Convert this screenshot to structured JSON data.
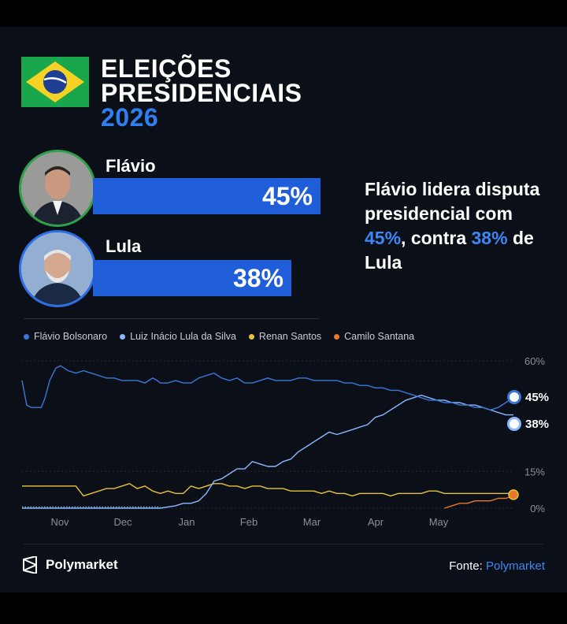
{
  "header": {
    "title_line1": "ELEIÇÕES",
    "title_line2": "PRESIDENCIAIS",
    "year": "2026"
  },
  "candidates": [
    {
      "name": "Flávio",
      "percent_label": "45%",
      "percent": 45
    },
    {
      "name": "Lula",
      "percent_label": "38%",
      "percent": 38
    }
  ],
  "headline": {
    "part1": "Flávio lidera disputa presidencial com ",
    "hl1": "45%",
    "part2": ", contra ",
    "hl2": "38%",
    "part3": " de Lula"
  },
  "colors": {
    "accent": "#2f7ff0",
    "bar": "#1f5ed8",
    "series_flavio": "#3a78d8",
    "series_lula": "#8cb8ff",
    "series_renan": "#e8c23a",
    "series_camilo": "#e8772a"
  },
  "chart_data": {
    "type": "line",
    "x_ticks": [
      "Nov",
      "Dec",
      "Jan",
      "Feb",
      "Mar",
      "Apr",
      "May"
    ],
    "y_ticks": [
      "60%",
      "15%",
      "0%"
    ],
    "ylim": [
      0,
      60
    ],
    "legend_position": "top",
    "series": [
      {
        "name": "Flávio Bolsonaro",
        "color": "#3a78d8",
        "end_label": "45%",
        "points": [
          [
            0,
            52
          ],
          [
            0.3,
            47
          ],
          [
            0.6,
            42
          ],
          [
            1.2,
            41
          ],
          [
            2,
            41
          ],
          [
            2.5,
            41
          ],
          [
            3,
            45
          ],
          [
            3.6,
            52
          ],
          [
            4.4,
            57
          ],
          [
            5,
            58
          ],
          [
            6,
            56
          ],
          [
            7,
            55
          ],
          [
            8,
            56
          ],
          [
            9,
            55
          ],
          [
            10,
            54
          ],
          [
            11,
            53
          ],
          [
            12,
            53
          ],
          [
            13,
            52
          ],
          [
            14,
            52
          ],
          [
            15,
            52
          ],
          [
            16,
            51
          ],
          [
            17,
            53
          ],
          [
            17.6,
            52
          ],
          [
            18,
            51
          ],
          [
            19,
            51
          ],
          [
            20,
            52
          ],
          [
            21,
            51
          ],
          [
            22,
            51
          ],
          [
            23,
            53
          ],
          [
            24,
            54
          ],
          [
            25,
            55
          ],
          [
            26,
            53
          ],
          [
            27,
            52
          ],
          [
            28,
            53
          ],
          [
            29,
            51
          ],
          [
            30,
            51
          ],
          [
            31,
            52
          ],
          [
            32,
            53
          ],
          [
            33,
            52
          ],
          [
            34,
            52
          ],
          [
            35,
            52
          ],
          [
            36,
            53
          ],
          [
            37,
            53
          ],
          [
            38,
            52
          ],
          [
            39,
            52
          ],
          [
            40,
            52
          ],
          [
            41,
            52
          ],
          [
            42,
            51
          ],
          [
            43,
            51
          ],
          [
            44,
            50
          ],
          [
            45,
            50
          ],
          [
            46,
            49
          ],
          [
            47,
            49
          ],
          [
            48,
            48
          ],
          [
            49,
            48
          ],
          [
            50,
            47
          ],
          [
            51,
            46
          ],
          [
            52,
            45
          ],
          [
            53,
            44
          ],
          [
            54,
            44
          ],
          [
            55,
            43
          ],
          [
            56,
            43
          ],
          [
            57,
            42
          ],
          [
            58,
            42
          ],
          [
            59,
            41
          ],
          [
            60,
            41
          ],
          [
            61,
            40
          ],
          [
            62,
            41
          ],
          [
            63,
            43
          ],
          [
            64,
            45
          ]
        ]
      },
      {
        "name": "Luiz Inácio Lula da Silva",
        "color": "#8cb8ff",
        "end_label": "38%",
        "points": [
          [
            0,
            0
          ],
          [
            18,
            0
          ],
          [
            20,
            1
          ],
          [
            21,
            2
          ],
          [
            22,
            2
          ],
          [
            23,
            3
          ],
          [
            24,
            6
          ],
          [
            25,
            11
          ],
          [
            26,
            12
          ],
          [
            27,
            14
          ],
          [
            28,
            16
          ],
          [
            29,
            16
          ],
          [
            30,
            19
          ],
          [
            31,
            18
          ],
          [
            32,
            17
          ],
          [
            33,
            17
          ],
          [
            34,
            19
          ],
          [
            35,
            20
          ],
          [
            36,
            23
          ],
          [
            37,
            25
          ],
          [
            38,
            27
          ],
          [
            39,
            29
          ],
          [
            40,
            31
          ],
          [
            41,
            30
          ],
          [
            42,
            31
          ],
          [
            43,
            32
          ],
          [
            44,
            33
          ],
          [
            45,
            34
          ],
          [
            46,
            37
          ],
          [
            47,
            38
          ],
          [
            48,
            40
          ],
          [
            49,
            42
          ],
          [
            50,
            44
          ],
          [
            51,
            45
          ],
          [
            52,
            46
          ],
          [
            53,
            45
          ],
          [
            54,
            44
          ],
          [
            55,
            44
          ],
          [
            56,
            43
          ],
          [
            57,
            43
          ],
          [
            58,
            42
          ],
          [
            59,
            42
          ],
          [
            60,
            41
          ],
          [
            61,
            40
          ],
          [
            62,
            39
          ],
          [
            63,
            38
          ],
          [
            64,
            38
          ]
        ]
      },
      {
        "name": "Renan Santos",
        "color": "#e8c23a",
        "end_label": "",
        "points": [
          [
            0,
            9
          ],
          [
            7,
            9
          ],
          [
            8,
            5
          ],
          [
            9,
            6
          ],
          [
            10,
            7
          ],
          [
            11,
            8
          ],
          [
            12,
            8
          ],
          [
            13,
            9
          ],
          [
            14,
            10
          ],
          [
            15,
            8
          ],
          [
            16,
            9
          ],
          [
            17,
            7
          ],
          [
            18,
            6
          ],
          [
            19,
            7
          ],
          [
            20,
            6
          ],
          [
            21,
            6
          ],
          [
            22,
            9
          ],
          [
            23,
            8
          ],
          [
            24,
            9
          ],
          [
            25,
            10
          ],
          [
            26,
            10
          ],
          [
            27,
            9
          ],
          [
            28,
            9
          ],
          [
            29,
            8
          ],
          [
            30,
            9
          ],
          [
            31,
            9
          ],
          [
            32,
            8
          ],
          [
            33,
            8
          ],
          [
            34,
            8
          ],
          [
            35,
            7
          ],
          [
            36,
            7
          ],
          [
            37,
            7
          ],
          [
            38,
            7
          ],
          [
            39,
            6
          ],
          [
            40,
            7
          ],
          [
            41,
            6
          ],
          [
            42,
            6
          ],
          [
            43,
            5
          ],
          [
            44,
            6
          ],
          [
            45,
            6
          ],
          [
            46,
            6
          ],
          [
            47,
            6
          ],
          [
            48,
            5
          ],
          [
            49,
            6
          ],
          [
            50,
            6
          ],
          [
            51,
            6
          ],
          [
            52,
            6
          ],
          [
            53,
            7
          ],
          [
            54,
            7
          ],
          [
            55,
            6
          ],
          [
            56,
            6
          ],
          [
            57,
            6
          ],
          [
            58,
            6
          ],
          [
            59,
            6
          ],
          [
            60,
            6
          ],
          [
            61,
            6
          ],
          [
            62,
            6
          ],
          [
            63,
            6
          ],
          [
            64,
            6
          ]
        ]
      },
      {
        "name": "Camilo Santana",
        "color": "#e8772a",
        "end_label": "",
        "points": [
          [
            55,
            0
          ],
          [
            56,
            1
          ],
          [
            57,
            2
          ],
          [
            58,
            2
          ],
          [
            59,
            3
          ],
          [
            60,
            3
          ],
          [
            61,
            3
          ],
          [
            62,
            4
          ],
          [
            63,
            4
          ],
          [
            64,
            5
          ]
        ]
      }
    ]
  },
  "footer": {
    "brand": "Polymarket",
    "source_prefix": "Fonte: ",
    "source": "Polymarket"
  }
}
